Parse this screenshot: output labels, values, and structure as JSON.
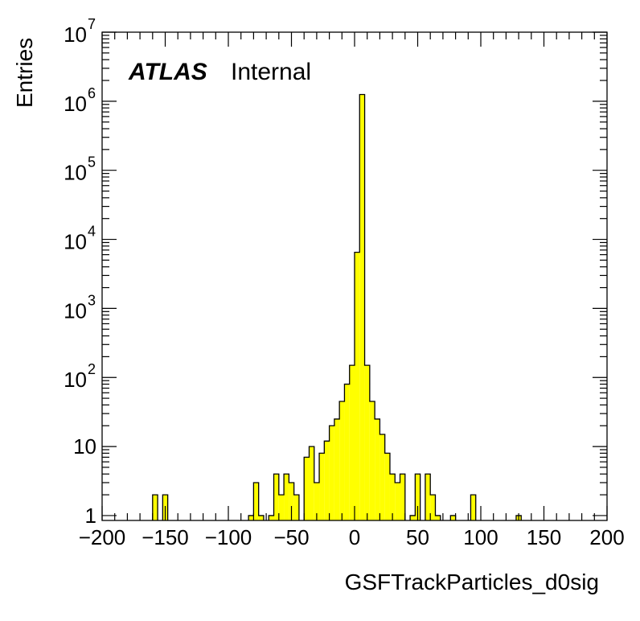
{
  "chart_data": {
    "type": "bar",
    "xlabel": "GSFTrackParticles_d0sig",
    "ylabel": "Entries",
    "experiment": "ATLAS",
    "status": "Internal",
    "xlim": [
      -200,
      200
    ],
    "ylim": [
      0.85,
      10000000
    ],
    "log_y": true,
    "bin_width": 4,
    "fill_color": "#ffff00",
    "line_color": "#000000",
    "x_ticks": [
      "−200",
      "−150",
      "−100",
      "−50",
      "0",
      "50",
      "100",
      "150",
      "200"
    ],
    "x_tick_values": [
      -200,
      -150,
      -100,
      -50,
      0,
      50,
      100,
      150,
      200
    ],
    "y_ticks": [
      {
        "value": 1,
        "base": "1",
        "exp": ""
      },
      {
        "value": 10,
        "base": "10",
        "exp": ""
      },
      {
        "value": 100,
        "base": "10",
        "exp": "2"
      },
      {
        "value": 1000,
        "base": "10",
        "exp": "3"
      },
      {
        "value": 10000,
        "base": "10",
        "exp": "4"
      },
      {
        "value": 100000,
        "base": "10",
        "exp": "5"
      },
      {
        "value": 1000000,
        "base": "10",
        "exp": "6"
      },
      {
        "value": 10000000,
        "base": "10",
        "exp": "7"
      }
    ],
    "bins": [
      {
        "x": -160,
        "y": 2
      },
      {
        "x": -152,
        "y": 2
      },
      {
        "x": -84,
        "y": 1
      },
      {
        "x": -80,
        "y": 3
      },
      {
        "x": -76,
        "y": 1
      },
      {
        "x": -68,
        "y": 1
      },
      {
        "x": -64,
        "y": 4
      },
      {
        "x": -60,
        "y": 2
      },
      {
        "x": -56,
        "y": 4
      },
      {
        "x": -52,
        "y": 3
      },
      {
        "x": -48,
        "y": 2
      },
      {
        "x": -40,
        "y": 7
      },
      {
        "x": -36,
        "y": 10
      },
      {
        "x": -32,
        "y": 3
      },
      {
        "x": -28,
        "y": 8
      },
      {
        "x": -24,
        "y": 12
      },
      {
        "x": -20,
        "y": 20
      },
      {
        "x": -16,
        "y": 25
      },
      {
        "x": -12,
        "y": 45
      },
      {
        "x": -8,
        "y": 80
      },
      {
        "x": -4,
        "y": 150
      },
      {
        "x": 0,
        "y": 6500
      },
      {
        "x": 4,
        "y": 1250000
      },
      {
        "x": 8,
        "y": 150
      },
      {
        "x": 12,
        "y": 45
      },
      {
        "x": 16,
        "y": 25
      },
      {
        "x": 20,
        "y": 15
      },
      {
        "x": 24,
        "y": 8
      },
      {
        "x": 28,
        "y": 4
      },
      {
        "x": 32,
        "y": 3
      },
      {
        "x": 36,
        "y": 4
      },
      {
        "x": 44,
        "y": 1
      },
      {
        "x": 48,
        "y": 4
      },
      {
        "x": 56,
        "y": 4
      },
      {
        "x": 60,
        "y": 2
      },
      {
        "x": 64,
        "y": 1
      },
      {
        "x": 76,
        "y": 1
      },
      {
        "x": 92,
        "y": 2
      },
      {
        "x": 128,
        "y": 1
      }
    ]
  }
}
